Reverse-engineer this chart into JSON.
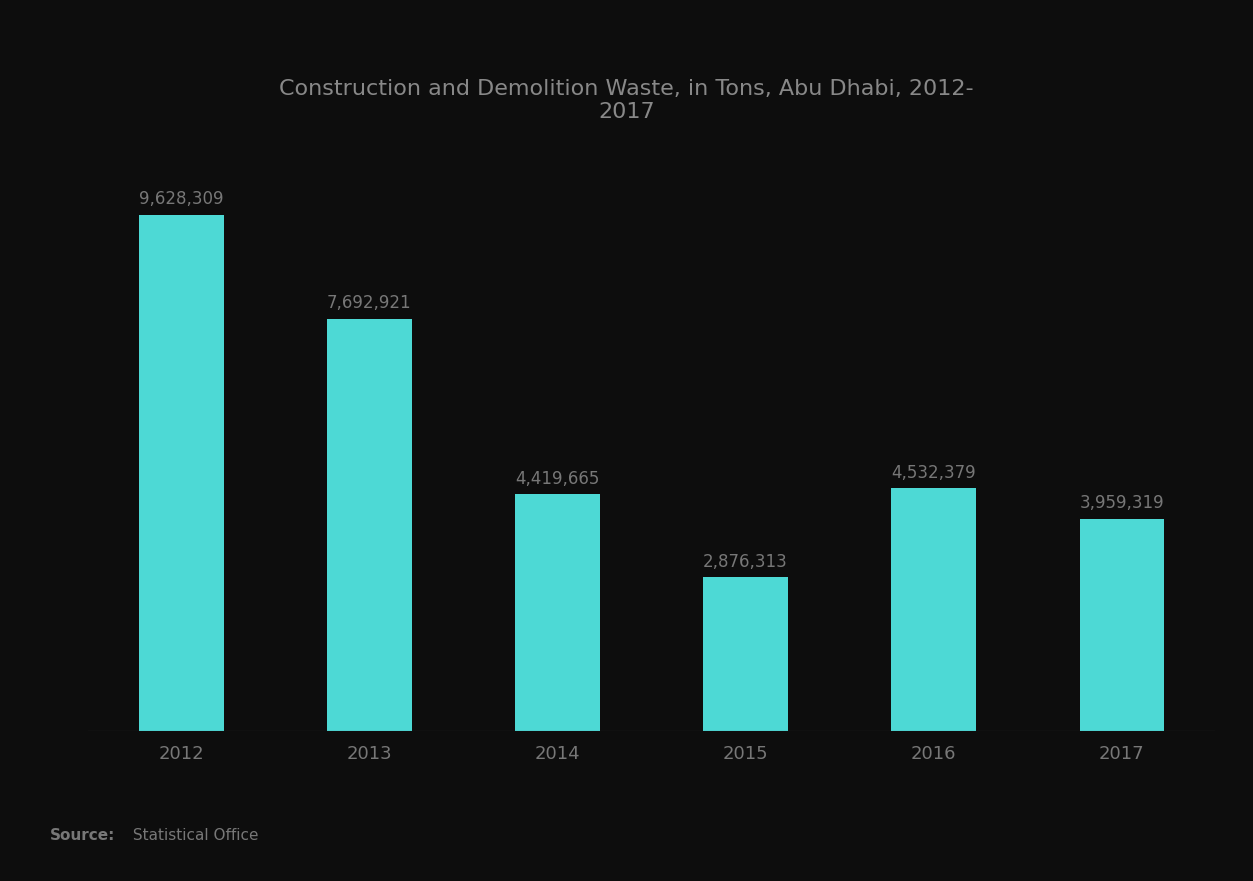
{
  "title": "Construction and Demolition Waste, in Tons, Abu Dhabi, 2012-\n2017",
  "years": [
    "2012",
    "2013",
    "2014",
    "2015",
    "2016",
    "2017"
  ],
  "values": [
    9628309,
    7692921,
    4419665,
    2876313,
    4532379,
    3959319
  ],
  "labels": [
    "9,628,309",
    "7,692,921",
    "4,419,665",
    "2,876,313",
    "4,532,379",
    "3,959,319"
  ],
  "bar_color": "#4DD9D5",
  "background_color": "#0d0d0d",
  "title_color": "#888888",
  "label_color": "#777777",
  "tick_color": "#777777",
  "source_bold": "Source:",
  "source_text": " Statistical Office",
  "footer_bg": "#1a7abf",
  "ylim": [
    0,
    11500000
  ],
  "bar_width": 0.45
}
